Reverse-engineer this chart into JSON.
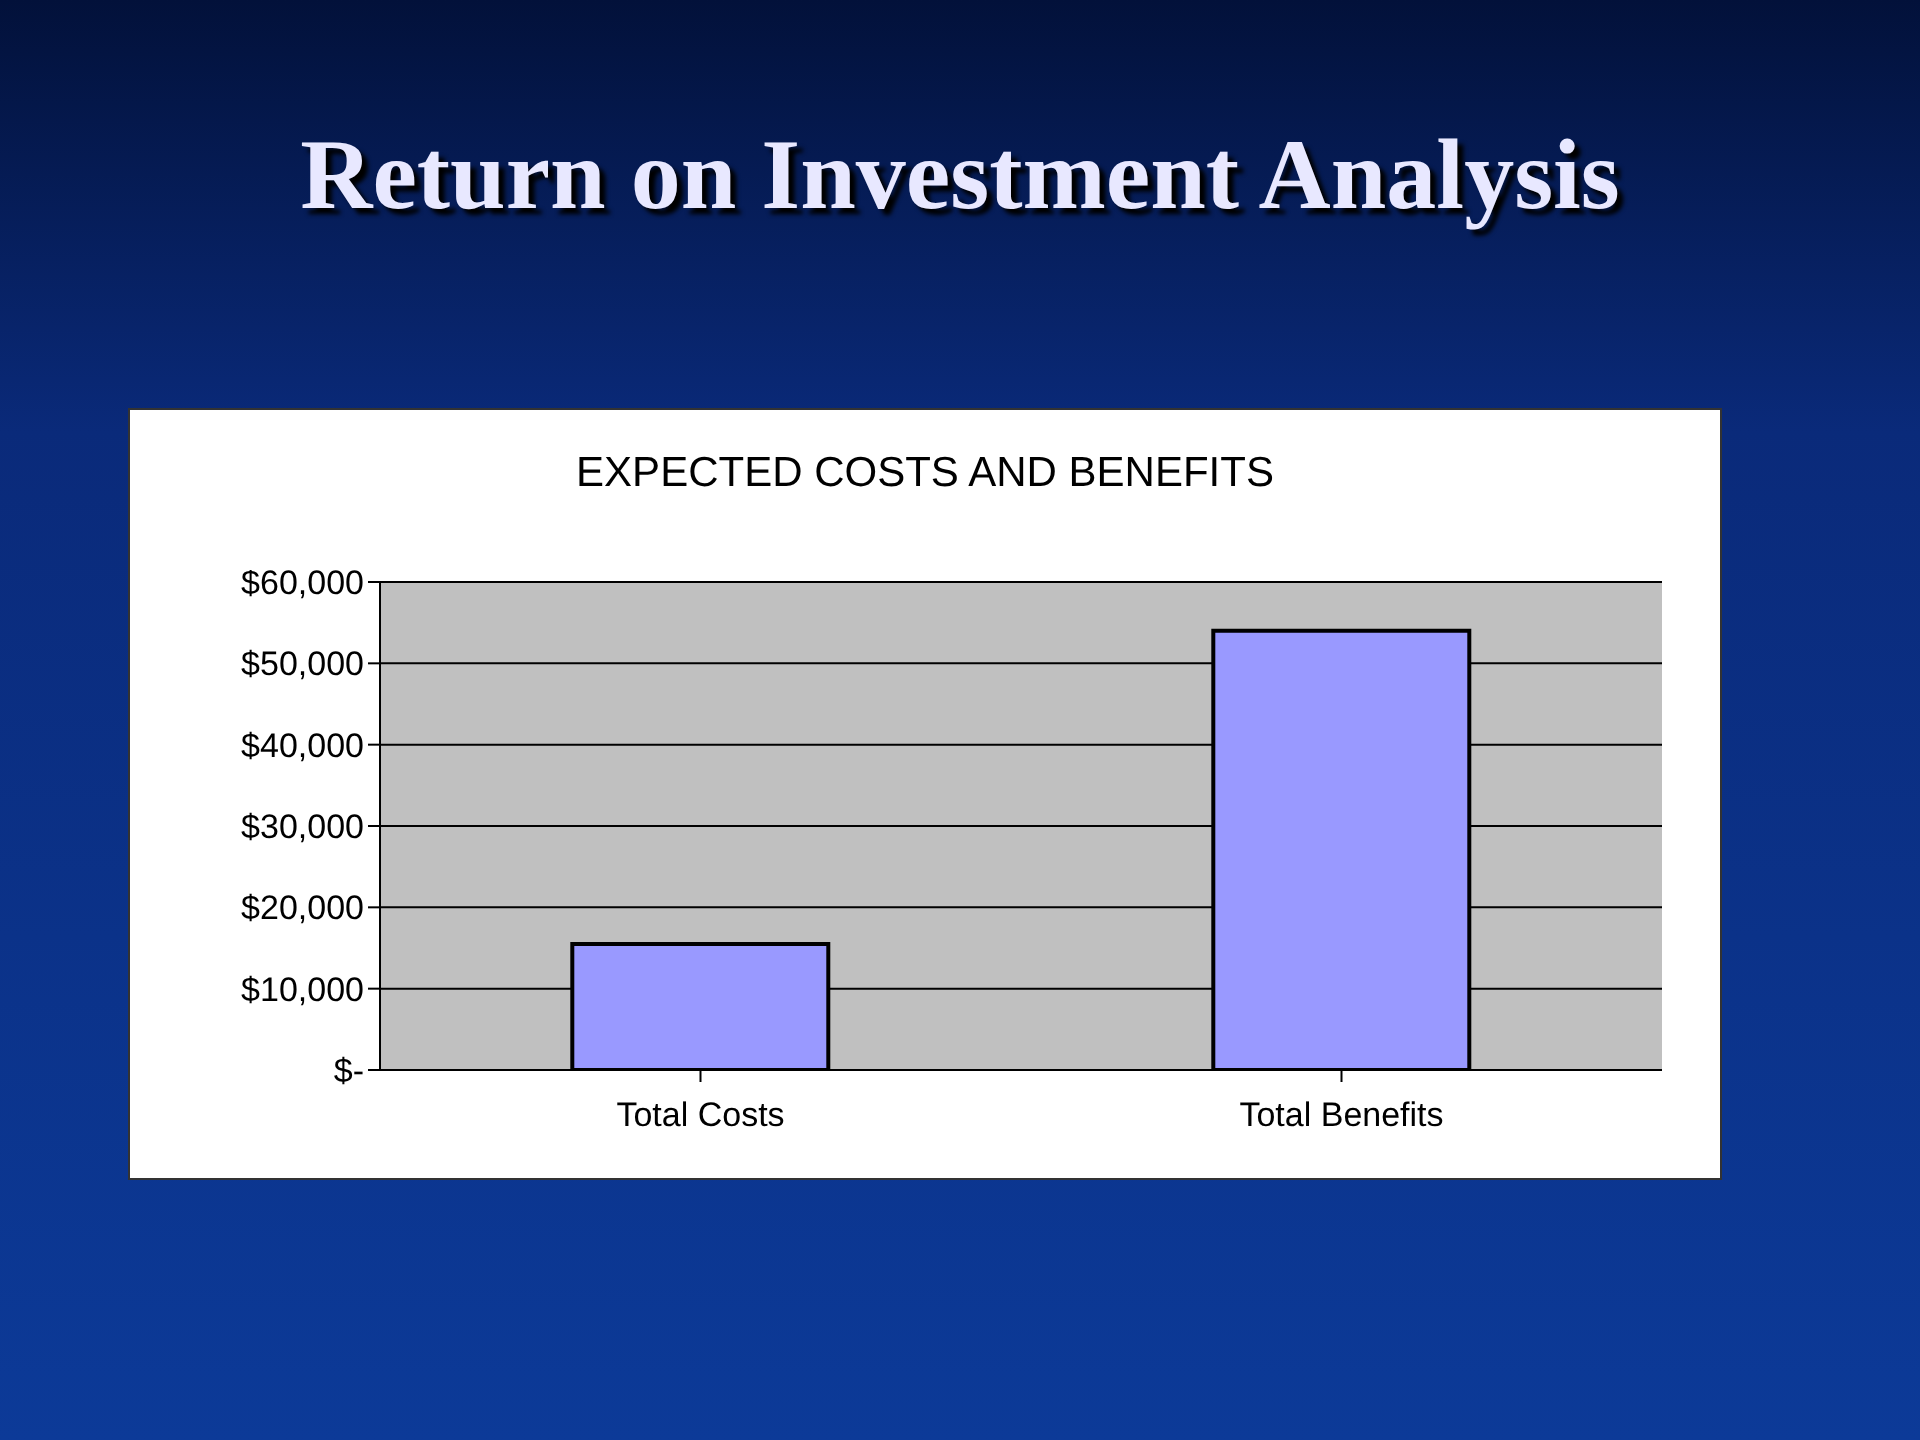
{
  "chart_data": {
    "type": "bar",
    "title": "Return on Investment Analysis",
    "subtitle": "EXPECTED COSTS AND BENEFITS",
    "categories": [
      "Total Costs",
      "Total Benefits"
    ],
    "values": [
      15500,
      54000
    ],
    "color": "#9999ff",
    "ylim": [
      0,
      60000
    ],
    "yticks": [
      {
        "value": 0,
        "label": "$-"
      },
      {
        "value": 10000,
        "label": "$10,000"
      },
      {
        "value": 20000,
        "label": "$20,000"
      },
      {
        "value": 30000,
        "label": "$30,000"
      },
      {
        "value": 40000,
        "label": "$40,000"
      },
      {
        "value": 50000,
        "label": "$50,000"
      },
      {
        "value": 60000,
        "label": "$60,000"
      }
    ],
    "grid": "y"
  }
}
